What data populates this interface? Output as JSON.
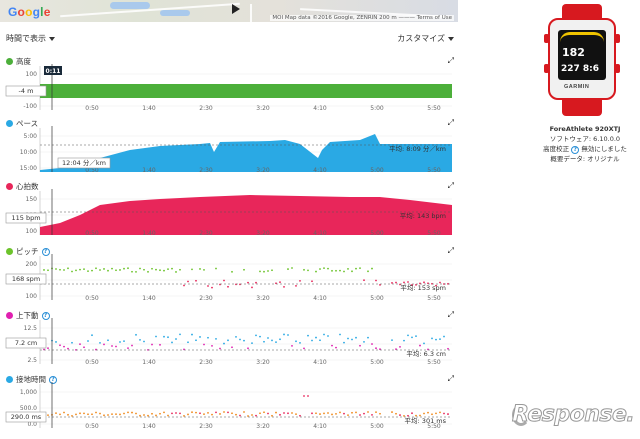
{
  "map": {
    "logo_letters": [
      "G",
      "o",
      "o",
      "g",
      "l",
      "e"
    ],
    "copyright": "MOI  Map data ©2016 Google, ZENRIN   200 m ———   Terms of Use"
  },
  "toolbar": {
    "time_label": "時間で表示",
    "customize_label": "カスタマイズ"
  },
  "time_ticks": [
    "0:50",
    "1:40",
    "2:30",
    "3:20",
    "4:10",
    "5:00",
    "5:50"
  ],
  "panels": [
    {
      "id": "elevation",
      "title": "高度",
      "color": "#4caf3a",
      "y_ticks": [
        "100",
        "0",
        "-100"
      ],
      "tooltip": "-4 m",
      "time_marker": "0:11",
      "avg": ""
    },
    {
      "id": "pace",
      "title": "ペース",
      "color": "#2aa9e4",
      "y_ticks": [
        "5:00",
        "10:00",
        "15:00"
      ],
      "tooltip": "12:04 分／km",
      "avg": "平均: 8:09 分／km"
    },
    {
      "id": "heart",
      "title": "心拍数",
      "color": "#e8265a",
      "y_ticks": [
        "150",
        "125",
        "100"
      ],
      "tooltip": "115 bpm",
      "avg": "平均: 143 bpm"
    },
    {
      "id": "cadence",
      "title": "ピッチ",
      "color": "#6cc32b",
      "y_ticks": [
        "200",
        "150",
        "100"
      ],
      "tooltip": "168 spm",
      "avg": "平均: 153 spm"
    },
    {
      "id": "vertical",
      "title": "上下動",
      "color": "#e020b0",
      "y_ticks": [
        "12.5",
        "7.5",
        "2.5"
      ],
      "tooltip": "7.2 cm",
      "avg": "平均: 6.3 cm"
    },
    {
      "id": "contact",
      "title": "接地時間",
      "color": "#2aa9e4",
      "y_ticks": [
        "1,000",
        "500.0",
        "0.0"
      ],
      "tooltip": "290.0 ms",
      "avg": "平均: 301 ms"
    }
  ],
  "device": {
    "name": "ForeAthlete 920XTJ",
    "software": "ソフトウェア: 6.10.0.0",
    "altitude": "高度校正",
    "altitude_value": "無効にしました",
    "summary": "概要データ: オリジナル",
    "screen_top": "182",
    "screen_bottom": "227 8:6",
    "brand": "GARMIN",
    "strap_color": "#d7191f"
  },
  "watermark": "Response."
}
